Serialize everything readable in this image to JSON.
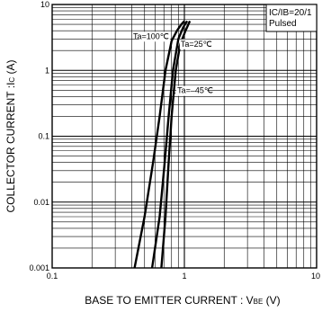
{
  "chart_data": {
    "type": "line",
    "title": "",
    "xlabel": "BASE TO EMITTER CURRENT : V",
    "xlabel_sub": "BE",
    "xlabel_unit": " (V)",
    "ylabel": "COLLECTOR CURRENT :I",
    "ylabel_sub": "C",
    "ylabel_unit": " (A)",
    "x_scale": "log",
    "y_scale": "log",
    "xlim": [
      0.1,
      10
    ],
    "ylim": [
      0.001,
      10
    ],
    "x_ticks": [
      "0.1",
      "1",
      "10"
    ],
    "y_ticks": [
      "0.001",
      "0.01",
      "0.1",
      "1",
      "10"
    ],
    "grid": true,
    "legend": {
      "placement": "top-right",
      "lines": [
        "IC/IB=20/1",
        "Pulsed"
      ]
    },
    "series": [
      {
        "name": "Ta=100℃",
        "x": [
          0.42,
          0.5,
          0.58,
          0.65,
          0.72,
          0.8,
          0.88,
          0.95,
          1.0
        ],
        "y": [
          0.001,
          0.006,
          0.04,
          0.2,
          1.0,
          2.8,
          4.0,
          5.0,
          5.6
        ]
      },
      {
        "name": "Ta=25℃",
        "x": [
          0.57,
          0.65,
          0.71,
          0.76,
          0.82,
          0.9,
          0.98,
          1.05
        ],
        "y": [
          0.001,
          0.006,
          0.04,
          0.2,
          1.0,
          3.0,
          4.5,
          5.6
        ]
      },
      {
        "name": "Ta=–45℃",
        "x": [
          0.67,
          0.72,
          0.76,
          0.8,
          0.86,
          0.93,
          1.02,
          1.1
        ],
        "y": [
          0.001,
          0.006,
          0.04,
          0.2,
          1.0,
          2.5,
          4.0,
          5.6
        ]
      }
    ]
  }
}
